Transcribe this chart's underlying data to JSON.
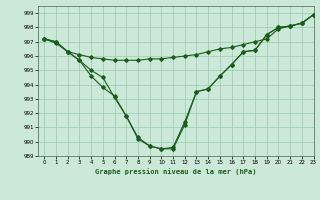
{
  "xlabel": "Graphe pression niveau de la mer (hPa)",
  "xlim": [
    -0.5,
    23
  ],
  "ylim": [
    989,
    999.5
  ],
  "yticks": [
    989,
    990,
    991,
    992,
    993,
    994,
    995,
    996,
    997,
    998,
    999
  ],
  "xticks": [
    0,
    1,
    2,
    3,
    4,
    5,
    6,
    7,
    8,
    9,
    10,
    11,
    12,
    13,
    14,
    15,
    16,
    17,
    18,
    19,
    20,
    21,
    22,
    23
  ],
  "bg_color": "#cce8d8",
  "grid_color": "#99ccb0",
  "line_color": "#1a5c1a",
  "line1_x": [
    0,
    1,
    2,
    3,
    4,
    5,
    6,
    7,
    8,
    9,
    10,
    11,
    12,
    13,
    14,
    15,
    16,
    17,
    18,
    19,
    20,
    21,
    22,
    23
  ],
  "line1_y": [
    997.2,
    996.9,
    996.3,
    996.1,
    995.9,
    995.8,
    995.7,
    995.7,
    995.7,
    995.8,
    995.8,
    995.9,
    996.0,
    996.1,
    996.3,
    996.5,
    996.6,
    996.8,
    997.0,
    997.2,
    997.9,
    998.1,
    998.3,
    998.9
  ],
  "line2_x": [
    0,
    1,
    2,
    3,
    4,
    5,
    6,
    7,
    8,
    9,
    10,
    11,
    12,
    13,
    14,
    15,
    16,
    17,
    18,
    19,
    20,
    21,
    22,
    23
  ],
  "line2_y": [
    997.2,
    997.0,
    996.3,
    995.7,
    995.0,
    994.5,
    993.1,
    991.8,
    990.3,
    989.7,
    989.5,
    989.5,
    991.2,
    993.5,
    993.7,
    994.6,
    995.4,
    996.3,
    996.4,
    997.5,
    998.0,
    998.1,
    998.3,
    998.9
  ],
  "line3_x": [
    0,
    1,
    2,
    3,
    4,
    5,
    6,
    7,
    8,
    9,
    10,
    11,
    12,
    13,
    14,
    15,
    16,
    17,
    18,
    19,
    20,
    21,
    22,
    23
  ],
  "line3_y": [
    997.2,
    997.0,
    996.3,
    995.7,
    994.6,
    993.8,
    993.2,
    991.8,
    990.2,
    989.7,
    989.5,
    989.6,
    991.4,
    993.5,
    993.7,
    994.6,
    995.4,
    996.3,
    996.4,
    997.5,
    998.0,
    998.1,
    998.3,
    998.9
  ]
}
